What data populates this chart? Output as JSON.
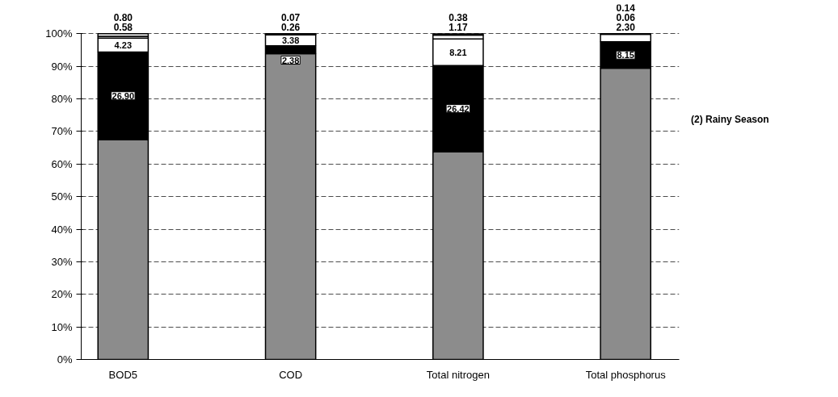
{
  "chart_data": {
    "type": "bar",
    "stacked": true,
    "categories": [
      "BOD5",
      "COD",
      "Total nitrogen",
      "Total phosphorus"
    ],
    "series": [
      {
        "color": "#8c8c8c",
        "values": [
          67.5,
          93.9,
          63.8,
          89.4
        ],
        "value_labels": [
          null,
          null,
          null,
          null
        ]
      },
      {
        "color": "#000000",
        "values": [
          26.9,
          2.38,
          26.42,
          8.15
        ],
        "value_labels": [
          "26.90",
          "2.38",
          "26.42",
          "8.15"
        ]
      },
      {
        "color": "#ffffff",
        "values": [
          4.23,
          3.38,
          8.21,
          2.3
        ],
        "value_labels": [
          "4.23",
          "3.38",
          "8.21",
          "2.30"
        ]
      },
      {
        "color": "#ffffff",
        "values": [
          0.58,
          0.26,
          1.17,
          0.06
        ],
        "value_labels": [
          "0.58",
          "0.26",
          "1.17",
          "0.06"
        ]
      },
      {
        "color": "#ffffff",
        "values": [
          0.8,
          0.07,
          0.38,
          0.14
        ],
        "value_labels": [
          "0.80",
          "0.07",
          "0.38",
          "0.14"
        ]
      }
    ],
    "ylim": [
      0,
      100
    ],
    "yticks": [
      {
        "value": 0,
        "label": "0%"
      },
      {
        "value": 10,
        "label": "10%"
      },
      {
        "value": 20,
        "label": "20%"
      },
      {
        "value": 30,
        "label": "30%"
      },
      {
        "value": 40,
        "label": "40%"
      },
      {
        "value": 50,
        "label": "50%"
      },
      {
        "value": 60,
        "label": "60%"
      },
      {
        "value": 70,
        "label": "70%"
      },
      {
        "value": 80,
        "label": "80%"
      },
      {
        "value": 90,
        "label": "90%"
      },
      {
        "value": 100,
        "label": "100%"
      }
    ],
    "grid": "y",
    "annotations": [
      "(2) Rainy Season"
    ]
  }
}
